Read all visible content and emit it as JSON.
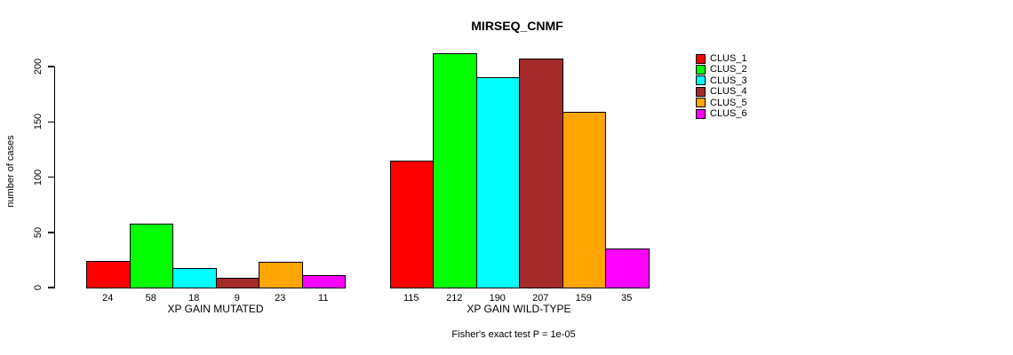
{
  "figure": {
    "title": "MIRSEQ_CNMF"
  },
  "chart_data": {
    "type": "bar",
    "title": "MIRSEQ_CNMF",
    "ylabel": "number of cases",
    "xlabel": "",
    "ylim": [
      0,
      220
    ],
    "yticks": [
      0,
      50,
      100,
      150,
      200
    ],
    "grid": false,
    "legend_position": "right",
    "categories": [
      "XP GAIN MUTATED",
      "XP GAIN WILD-TYPE"
    ],
    "series": [
      {
        "name": "CLUS_1",
        "color": "#FF0000",
        "values": [
          24,
          115
        ]
      },
      {
        "name": "CLUS_2",
        "color": "#00FF00",
        "values": [
          58,
          212
        ]
      },
      {
        "name": "CLUS_3",
        "color": "#00FFFF",
        "values": [
          18,
          190
        ]
      },
      {
        "name": "CLUS_4",
        "color": "#A52A2A",
        "values": [
          9,
          207
        ]
      },
      {
        "name": "CLUS_5",
        "color": "#FFA500",
        "values": [
          23,
          159
        ]
      },
      {
        "name": "CLUS_6",
        "color": "#FF00FF",
        "values": [
          11,
          35
        ]
      }
    ],
    "bar_value_labels_shown": true,
    "footnote": "Fisher's exact test P = 1e-05"
  }
}
